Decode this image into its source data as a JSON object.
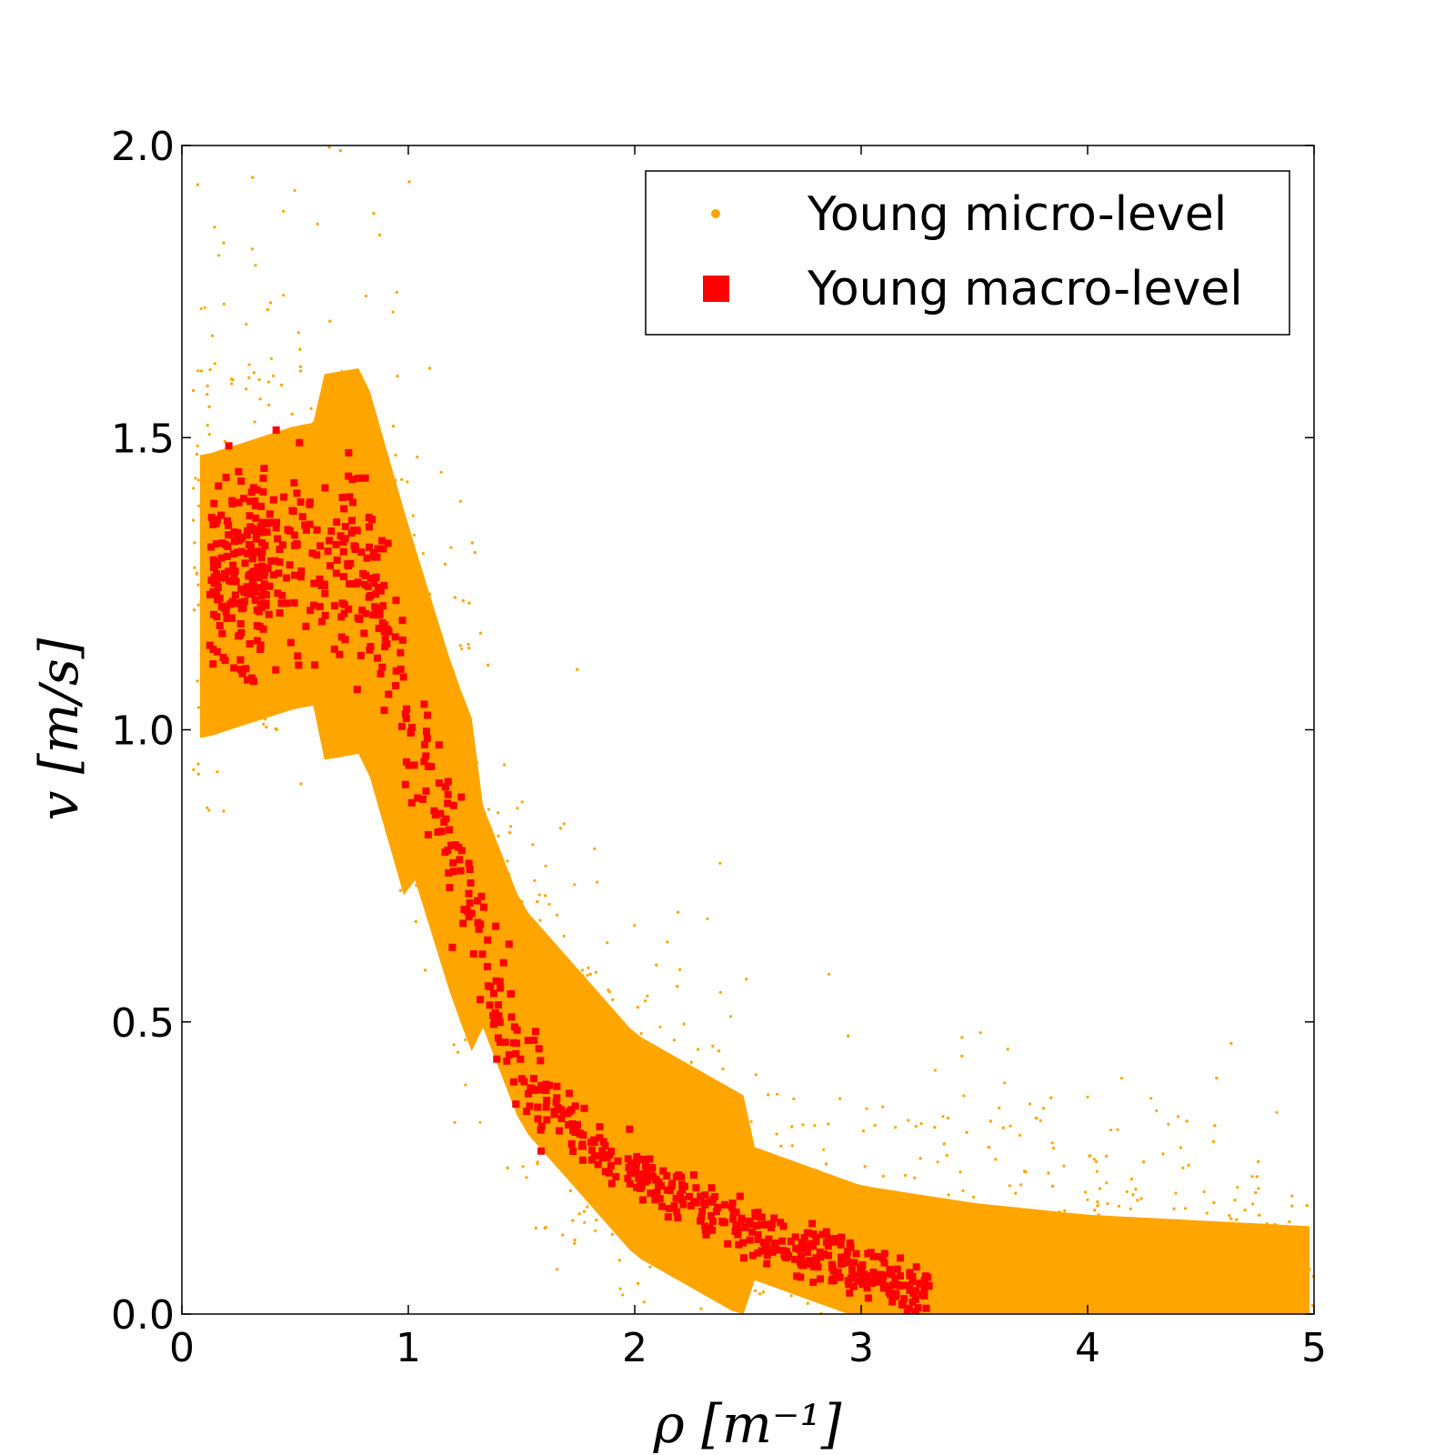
{
  "chart_data": {
    "type": "scatter",
    "xlabel": "ρ [m⁻¹]",
    "ylabel": "v [m/s]",
    "xlim": [
      0,
      5
    ],
    "ylim": [
      0,
      2.0
    ],
    "xticks": [
      "0",
      "1",
      "2",
      "3",
      "4",
      "5"
    ],
    "yticks": [
      "0.0",
      "0.5",
      "1.0",
      "1.5",
      "2.0"
    ],
    "grid": false,
    "legend_position": "top-right",
    "series": [
      {
        "name": "Young micro-level",
        "marker": "dot",
        "color": "#FFA500",
        "trend": [
          [
            0.1,
            1.25
          ],
          [
            0.5,
            1.3
          ],
          [
            0.8,
            1.32
          ],
          [
            1.0,
            1.05
          ],
          [
            1.2,
            0.8
          ],
          [
            1.5,
            0.5
          ],
          [
            2.0,
            0.28
          ],
          [
            2.5,
            0.17
          ],
          [
            3.0,
            0.1
          ],
          [
            3.5,
            0.07
          ],
          [
            4.0,
            0.05
          ],
          [
            4.5,
            0.04
          ],
          [
            5.0,
            0.03
          ]
        ]
      },
      {
        "name": "Young macro-level",
        "marker": "square",
        "color": "#FF0000",
        "trend": [
          [
            0.15,
            1.25
          ],
          [
            0.4,
            1.3
          ],
          [
            0.8,
            1.3
          ],
          [
            1.0,
            1.05
          ],
          [
            1.2,
            0.8
          ],
          [
            1.4,
            0.52
          ],
          [
            1.6,
            0.38
          ],
          [
            1.8,
            0.29
          ],
          [
            2.0,
            0.24
          ],
          [
            2.3,
            0.18
          ],
          [
            2.6,
            0.13
          ],
          [
            2.9,
            0.09
          ],
          [
            3.2,
            0.05
          ]
        ]
      }
    ]
  }
}
